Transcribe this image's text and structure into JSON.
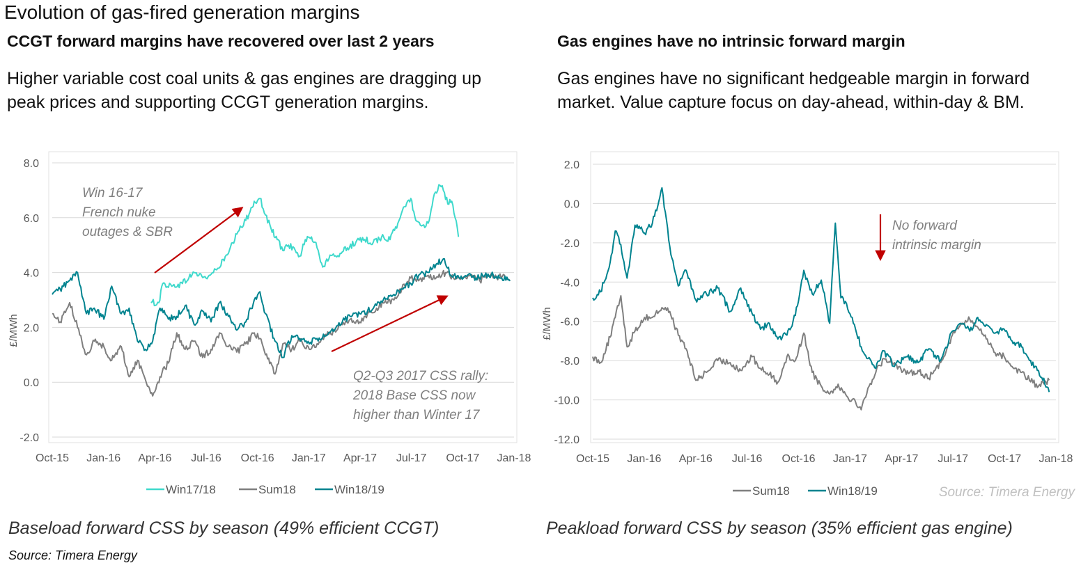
{
  "page": {
    "title": "Evolution of gas-fired generation margins",
    "left_subhead": "CCGT forward margins have recovered  over last 2 years",
    "left_desc_line1": "Higher variable cost coal units & gas engines are dragging up",
    "left_desc_line2": "peak prices and supporting CCGT generation margins.",
    "right_subhead": "Gas engines have no intrinsic  forward margin",
    "right_desc_line1": "Gas engines have no significant hedgeable margin in forward",
    "right_desc_line2": "market. Value capture focus on day-ahead, within-day & BM.",
    "left_caption": "Baseload forward CSS by season (49% efficient CCGT)",
    "left_source": "Source: Timera Energy",
    "right_caption": "Peakload forward CSS by season (35% efficient gas engine)"
  },
  "colors": {
    "win1718": "#3fd9cc",
    "sum18": "#7f7f7f",
    "win1819": "#00838f",
    "arrow": "#c00000",
    "grid": "#d9d9d9"
  },
  "chart_data": [
    {
      "type": "line",
      "ylabel": "£/MWh",
      "ylim": [
        -2.0,
        8.0
      ],
      "yticks": [
        "8.0",
        "6.0",
        "4.0",
        "2.0",
        "0.0",
        "-2.0"
      ],
      "xticks": [
        "Oct-15",
        "Jan-16",
        "Apr-16",
        "Jul-16",
        "Oct-16",
        "Jan-17",
        "Apr-17",
        "Jul-17",
        "Oct-17",
        "Jan-18"
      ],
      "xlim": [
        "2015-10-01",
        "2018-01-01"
      ],
      "grid": "horizontal",
      "legend_position": "bottom",
      "series": [
        {
          "name": "Win17/18",
          "color": "#3fd9cc",
          "x": [
            "2016-03-25",
            "2016-04-08",
            "2016-04-15",
            "2016-05-01",
            "2016-05-20",
            "2016-06-10",
            "2016-07-01",
            "2016-07-20",
            "2016-08-10",
            "2016-08-25",
            "2016-09-10",
            "2016-09-25",
            "2016-10-05",
            "2016-10-15",
            "2016-10-25",
            "2016-11-05",
            "2016-11-15",
            "2016-11-25",
            "2016-12-05",
            "2016-12-15",
            "2016-12-25",
            "2017-01-05",
            "2017-01-15",
            "2017-01-25",
            "2017-02-05",
            "2017-02-15",
            "2017-02-25",
            "2017-03-10",
            "2017-03-25",
            "2017-04-10",
            "2017-04-25",
            "2017-05-10",
            "2017-05-25",
            "2017-06-10",
            "2017-06-20",
            "2017-07-01",
            "2017-07-10",
            "2017-07-20",
            "2017-08-01",
            "2017-08-10",
            "2017-08-20",
            "2017-08-28",
            "2017-09-05",
            "2017-09-12",
            "2017-09-18",
            "2017-09-24"
          ],
          "values": [
            2.9,
            2.9,
            3.6,
            3.5,
            3.6,
            4.0,
            3.8,
            4.1,
            4.7,
            5.4,
            5.9,
            6.6,
            6.7,
            6.1,
            5.6,
            5.2,
            4.8,
            5.0,
            4.9,
            4.6,
            5.2,
            5.3,
            4.9,
            4.2,
            4.5,
            4.6,
            4.7,
            4.9,
            5.1,
            5.2,
            5.1,
            5.3,
            5.2,
            5.9,
            6.4,
            6.7,
            5.9,
            5.7,
            5.8,
            6.7,
            7.2,
            7.0,
            6.5,
            6.6,
            6.0,
            5.3
          ]
        },
        {
          "name": "Sum18",
          "color": "#7f7f7f",
          "x": [
            "2015-10-01",
            "2015-10-15",
            "2015-11-01",
            "2015-11-15",
            "2015-12-01",
            "2015-12-15",
            "2016-01-01",
            "2016-01-15",
            "2016-02-01",
            "2016-02-15",
            "2016-03-01",
            "2016-03-15",
            "2016-03-28",
            "2016-04-10",
            "2016-04-25",
            "2016-05-10",
            "2016-05-25",
            "2016-06-10",
            "2016-06-25",
            "2016-07-10",
            "2016-07-25",
            "2016-08-10",
            "2016-08-25",
            "2016-09-10",
            "2016-09-25",
            "2016-10-05",
            "2016-10-15",
            "2016-11-01",
            "2016-11-15",
            "2016-12-01",
            "2016-12-15",
            "2017-01-01",
            "2017-01-15",
            "2017-02-01",
            "2017-02-15",
            "2017-03-01",
            "2017-03-15",
            "2017-04-01",
            "2017-04-15",
            "2017-05-01",
            "2017-05-15",
            "2017-06-01",
            "2017-06-15",
            "2017-07-01",
            "2017-07-15",
            "2017-08-01",
            "2017-08-15",
            "2017-09-01",
            "2017-09-15",
            "2017-10-01",
            "2017-10-15",
            "2017-11-01",
            "2017-11-15",
            "2017-12-01",
            "2017-12-15",
            "2017-12-25"
          ],
          "values": [
            2.5,
            2.2,
            2.9,
            2.0,
            1.0,
            1.5,
            1.3,
            0.8,
            1.3,
            0.2,
            0.8,
            0.1,
            -0.5,
            0.2,
            0.7,
            1.8,
            1.2,
            1.5,
            0.9,
            1.2,
            1.8,
            1.3,
            1.1,
            1.4,
            1.8,
            1.6,
            1.0,
            0.3,
            1.4,
            1.2,
            1.5,
            1.2,
            1.4,
            1.7,
            1.9,
            2.1,
            2.3,
            2.2,
            2.5,
            2.7,
            2.9,
            3.0,
            3.4,
            3.8,
            3.7,
            3.9,
            3.8,
            4.0,
            3.8,
            3.8,
            3.9,
            3.7,
            3.9,
            3.8,
            3.9,
            3.7
          ]
        },
        {
          "name": "Win18/19",
          "color": "#00838f",
          "x": [
            "2015-10-01",
            "2015-10-15",
            "2015-11-01",
            "2015-11-15",
            "2015-12-01",
            "2015-12-15",
            "2016-01-01",
            "2016-01-15",
            "2016-02-01",
            "2016-02-15",
            "2016-03-01",
            "2016-03-15",
            "2016-03-28",
            "2016-04-10",
            "2016-04-25",
            "2016-05-10",
            "2016-05-25",
            "2016-06-10",
            "2016-06-25",
            "2016-07-10",
            "2016-07-25",
            "2016-08-10",
            "2016-08-25",
            "2016-09-10",
            "2016-09-25",
            "2016-10-05",
            "2016-10-15",
            "2016-11-01",
            "2016-11-15",
            "2016-12-01",
            "2016-12-15",
            "2017-01-01",
            "2017-01-15",
            "2017-02-01",
            "2017-02-15",
            "2017-03-01",
            "2017-03-15",
            "2017-04-01",
            "2017-04-15",
            "2017-05-01",
            "2017-05-15",
            "2017-06-01",
            "2017-06-15",
            "2017-07-01",
            "2017-07-15",
            "2017-08-01",
            "2017-08-15",
            "2017-08-28",
            "2017-09-10",
            "2017-09-25",
            "2017-10-10",
            "2017-10-25",
            "2017-11-10",
            "2017-11-25",
            "2017-12-10",
            "2017-12-25"
          ],
          "values": [
            3.2,
            3.4,
            3.7,
            4.0,
            2.5,
            2.7,
            2.3,
            3.5,
            2.5,
            2.7,
            1.5,
            1.2,
            1.5,
            2.7,
            2.3,
            2.4,
            2.8,
            2.1,
            2.6,
            2.2,
            2.9,
            2.4,
            1.9,
            2.2,
            3.0,
            3.3,
            2.5,
            1.5,
            0.9,
            1.7,
            1.6,
            1.4,
            1.6,
            1.7,
            1.9,
            2.2,
            2.4,
            2.5,
            2.6,
            2.8,
            3.1,
            3.2,
            3.4,
            3.6,
            3.9,
            4.0,
            4.3,
            4.5,
            3.9,
            3.8,
            3.9,
            3.8,
            3.9,
            3.9,
            3.8,
            3.7
          ]
        }
      ],
      "annotations": [
        {
          "lines": [
            "Win 16-17",
            "French nuke",
            "outages & SBR"
          ]
        },
        {
          "lines": [
            "Q2-Q3 2017 CSS rally:",
            "2018 Base CSS now",
            "higher than Winter 17"
          ]
        }
      ]
    },
    {
      "type": "line",
      "ylabel": "£/MWh",
      "ylim": [
        -12.0,
        2.0
      ],
      "yticks": [
        "2.0",
        "0.0",
        "-2.0",
        "-4.0",
        "-6.0",
        "-8.0",
        "-10.0",
        "-12.0"
      ],
      "xticks": [
        "Oct-15",
        "Jan-16",
        "Apr-16",
        "Jul-16",
        "Oct-16",
        "Jan-17",
        "Apr-17",
        "Jul-17",
        "Oct-17",
        "Jan-18"
      ],
      "xlim": [
        "2015-10-01",
        "2018-01-01"
      ],
      "grid": "horizontal",
      "legend_position": "bottom",
      "source": "Source: Timera Energy",
      "series": [
        {
          "name": "Sum18",
          "color": "#7f7f7f",
          "x": [
            "2015-10-01",
            "2015-10-15",
            "2015-11-01",
            "2015-11-10",
            "2015-11-20",
            "2015-12-01",
            "2015-12-15",
            "2016-01-01",
            "2016-01-15",
            "2016-02-01",
            "2016-02-15",
            "2016-03-01",
            "2016-03-15",
            "2016-04-01",
            "2016-04-20",
            "2016-05-10",
            "2016-06-01",
            "2016-06-20",
            "2016-07-10",
            "2016-07-25",
            "2016-08-10",
            "2016-08-25",
            "2016-09-10",
            "2016-09-25",
            "2016-10-10",
            "2016-10-25",
            "2016-11-10",
            "2016-11-25",
            "2016-12-10",
            "2016-12-25",
            "2017-01-10",
            "2017-01-20",
            "2017-02-01",
            "2017-02-15",
            "2017-03-01",
            "2017-03-20",
            "2017-04-10",
            "2017-05-01",
            "2017-05-20",
            "2017-06-10",
            "2017-07-01",
            "2017-07-15",
            "2017-08-01",
            "2017-08-15",
            "2017-09-01",
            "2017-09-15",
            "2017-10-01",
            "2017-10-15",
            "2017-11-01",
            "2017-11-15",
            "2017-12-01",
            "2017-12-20"
          ],
          "values": [
            -7.8,
            -8.1,
            -6.8,
            -5.8,
            -4.7,
            -7.3,
            -6.5,
            -5.8,
            -5.8,
            -5.3,
            -5.5,
            -6.7,
            -7.4,
            -9.0,
            -8.6,
            -8.0,
            -8.1,
            -8.5,
            -7.8,
            -8.4,
            -8.7,
            -9.1,
            -7.8,
            -8.0,
            -6.6,
            -8.6,
            -9.3,
            -9.7,
            -9.2,
            -9.8,
            -10.1,
            -10.5,
            -9.4,
            -8.6,
            -7.9,
            -8.1,
            -8.7,
            -8.5,
            -8.9,
            -8.1,
            -6.7,
            -6.2,
            -5.9,
            -6.3,
            -6.9,
            -7.6,
            -7.8,
            -8.3,
            -8.6,
            -9.0,
            -9.3,
            -9.0
          ]
        },
        {
          "name": "Win18/19",
          "color": "#00838f",
          "x": [
            "2015-10-01",
            "2015-10-15",
            "2015-11-01",
            "2015-11-10",
            "2015-11-20",
            "2015-12-01",
            "2015-12-15",
            "2016-01-01",
            "2016-01-15",
            "2016-02-01",
            "2016-02-15",
            "2016-03-01",
            "2016-03-15",
            "2016-04-01",
            "2016-04-20",
            "2016-05-10",
            "2016-06-01",
            "2016-06-20",
            "2016-07-10",
            "2016-07-25",
            "2016-08-10",
            "2016-08-25",
            "2016-09-10",
            "2016-09-25",
            "2016-10-10",
            "2016-10-25",
            "2016-11-10",
            "2016-11-25",
            "2016-12-05",
            "2016-12-15",
            "2016-12-25",
            "2017-01-10",
            "2017-01-20",
            "2017-02-01",
            "2017-02-15",
            "2017-03-01",
            "2017-03-20",
            "2017-04-10",
            "2017-05-01",
            "2017-05-20",
            "2017-06-10",
            "2017-07-01",
            "2017-07-15",
            "2017-08-01",
            "2017-08-15",
            "2017-09-01",
            "2017-09-15",
            "2017-10-01",
            "2017-10-15",
            "2017-11-01",
            "2017-11-15",
            "2017-12-01",
            "2017-12-20"
          ],
          "values": [
            -4.8,
            -4.5,
            -3.0,
            -1.4,
            -2.1,
            -3.8,
            -1.1,
            -1.5,
            -1.0,
            0.8,
            -2.2,
            -4.2,
            -3.4,
            -4.9,
            -4.6,
            -4.3,
            -5.5,
            -4.3,
            -5.6,
            -6.4,
            -6.1,
            -6.9,
            -6.7,
            -5.7,
            -3.4,
            -4.6,
            -3.9,
            -6.1,
            -1.0,
            -4.8,
            -5.1,
            -6.4,
            -7.3,
            -7.9,
            -8.4,
            -7.5,
            -8.3,
            -7.8,
            -8.1,
            -7.4,
            -8.0,
            -6.5,
            -6.1,
            -6.5,
            -5.8,
            -6.2,
            -6.6,
            -6.4,
            -7.0,
            -7.3,
            -8.0,
            -8.5,
            -9.6
          ]
        }
      ],
      "annotations": [
        {
          "lines": [
            "No forward",
            "intrinsic margin"
          ]
        }
      ]
    }
  ]
}
